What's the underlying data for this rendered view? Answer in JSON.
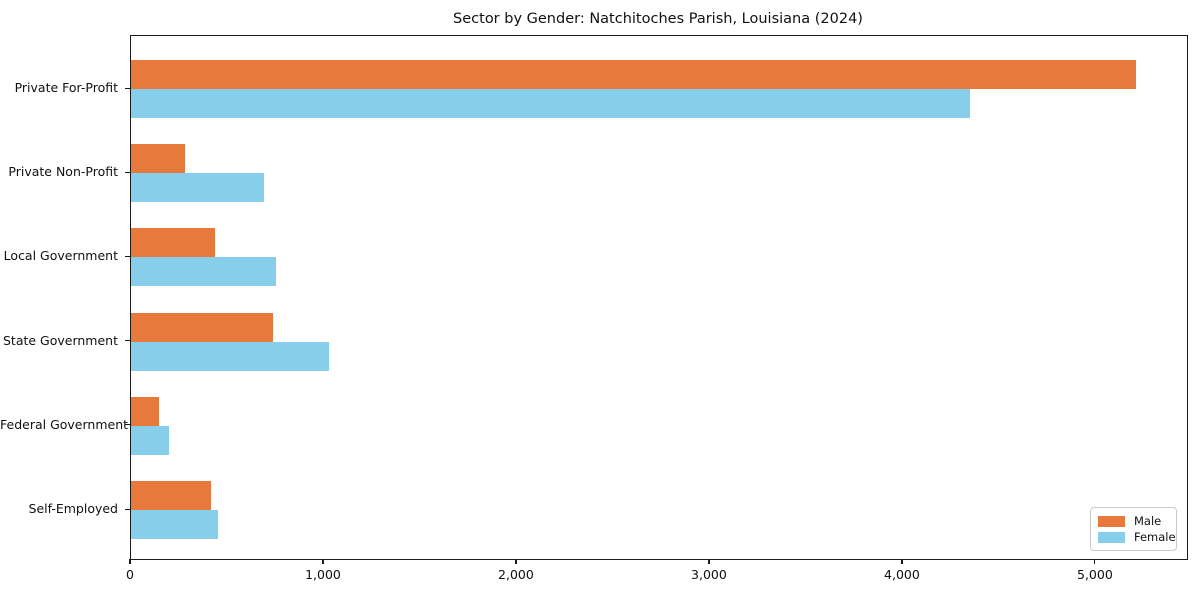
{
  "chart_data": {
    "type": "bar",
    "orientation": "horizontal",
    "title": "Sector by Gender: Natchitoches Parish, Louisiana (2024)",
    "xlabel": "",
    "ylabel": "",
    "categories": [
      "Private For-Profit",
      "Private Non-Profit",
      "Local Government",
      "State Government",
      "Federal Government",
      "Self-Employed"
    ],
    "series": [
      {
        "name": "Male",
        "color": "#e8793c",
        "values": [
          5210,
          280,
          435,
          734,
          145,
          414
        ]
      },
      {
        "name": "Female",
        "color": "#87ceeb",
        "values": [
          4347,
          688,
          751,
          1024,
          195,
          452
        ]
      }
    ],
    "xlim": [
      0,
      5472
    ],
    "xticks": [
      0,
      1000,
      2000,
      3000,
      4000,
      5000
    ],
    "xtick_labels": [
      "0",
      "1,000",
      "2,000",
      "3,000",
      "4,000",
      "5,000"
    ],
    "grid": false,
    "legend": {
      "position": "lower right",
      "entries": [
        "Male",
        "Female"
      ]
    }
  }
}
